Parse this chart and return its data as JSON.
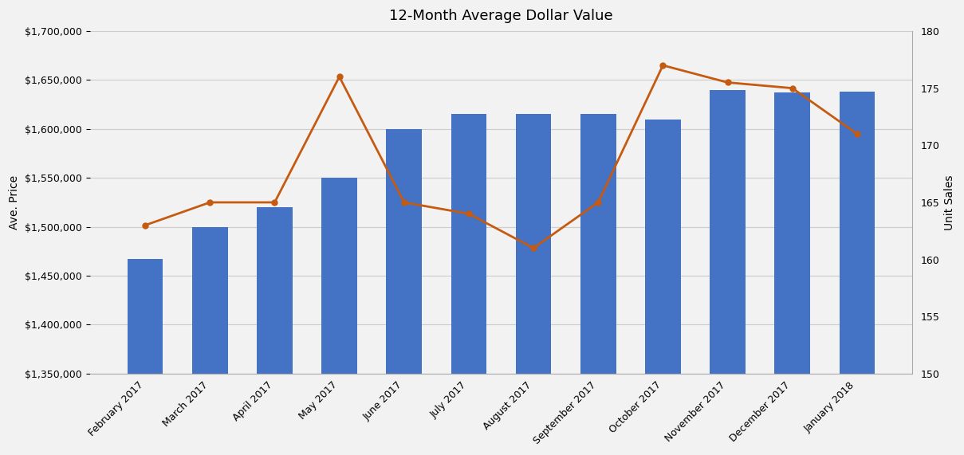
{
  "title": "12-Month Average Dollar Value",
  "categories": [
    "February 2017",
    "March 2017",
    "April 2017",
    "May 2017",
    "June 2017",
    "July 2017",
    "August 2017",
    "September 2017",
    "October 2017",
    "November 2017",
    "December 2017",
    "January 2018"
  ],
  "bar_values": [
    1467000,
    1500000,
    1520000,
    1550000,
    1600000,
    1615000,
    1615000,
    1615000,
    1610000,
    1640000,
    1637000,
    1638000
  ],
  "line_values": [
    163,
    165,
    165,
    176,
    165,
    164,
    161,
    165,
    177,
    175.5,
    175,
    171
  ],
  "bar_color": "#4472C4",
  "line_color": "#C55A11",
  "ylabel_left": "Ave. Price",
  "ylabel_right": "Unit Sales",
  "ylim_left": [
    1350000,
    1700000
  ],
  "ylim_right": [
    150,
    180
  ],
  "yticks_left": [
    1350000,
    1400000,
    1450000,
    1500000,
    1550000,
    1600000,
    1650000,
    1700000
  ],
  "yticks_right": [
    150,
    155,
    160,
    165,
    170,
    175,
    180
  ],
  "background_color": "#F2F2F2",
  "grid_color": "#CCCCCC",
  "title_fontsize": 13,
  "label_fontsize": 10,
  "tick_fontsize": 9
}
